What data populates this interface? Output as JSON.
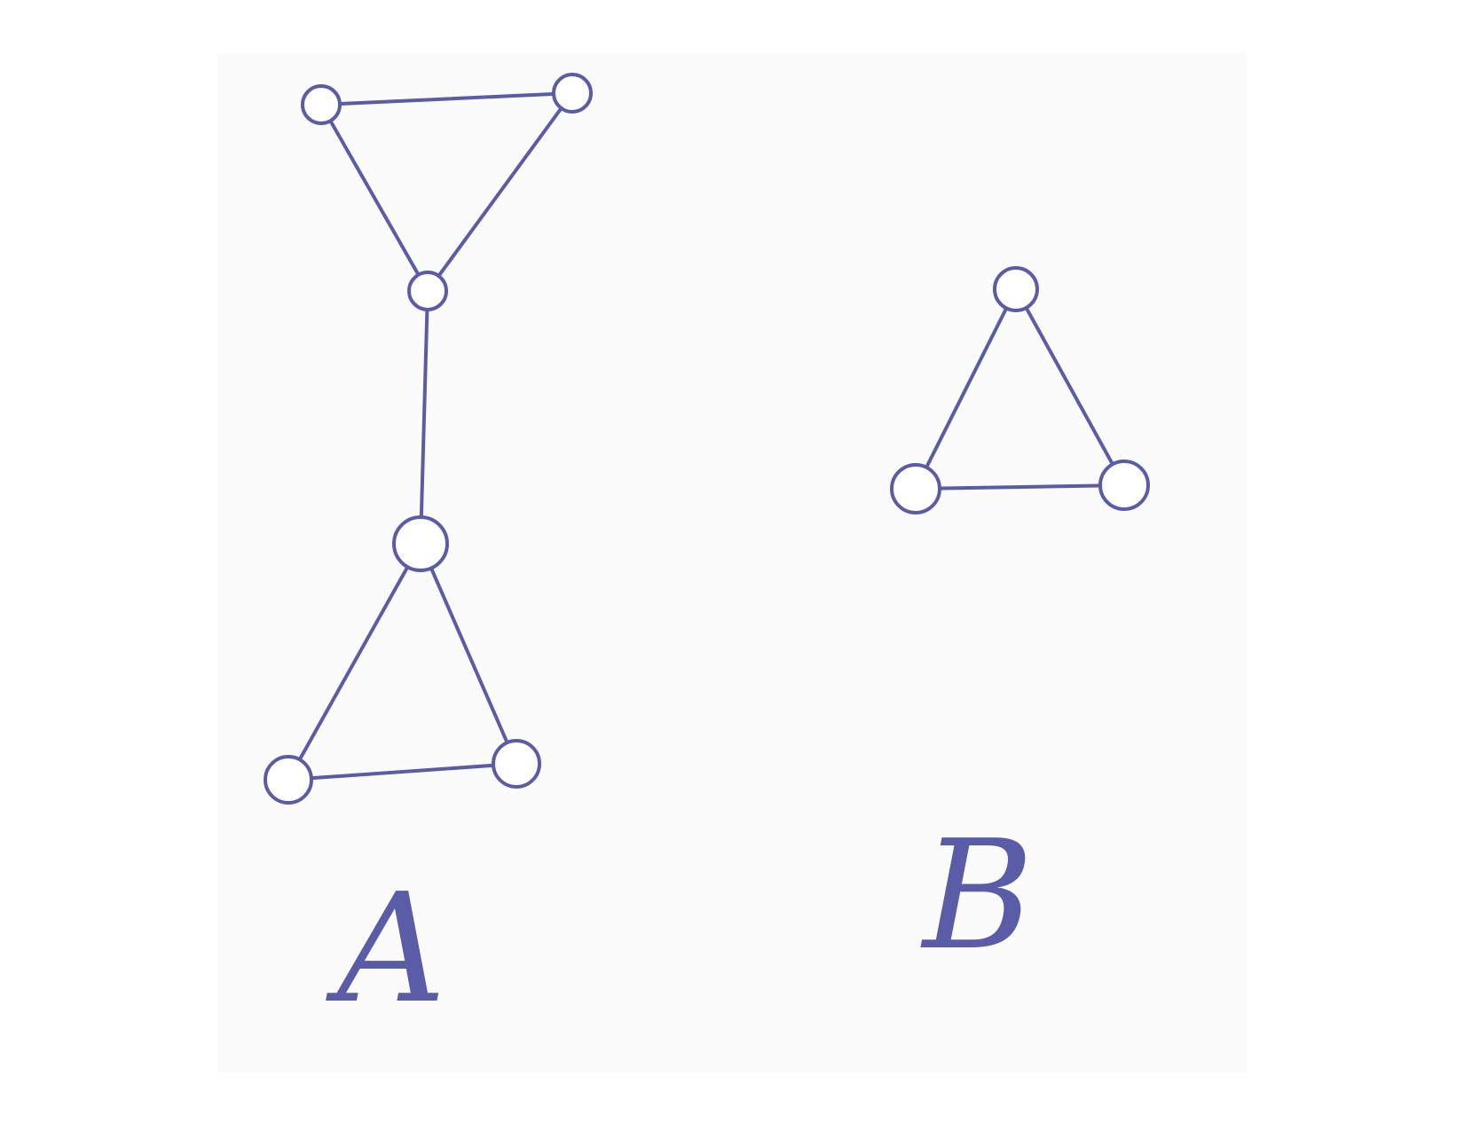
{
  "colors": {
    "ink": "#5b5ca8",
    "background": "#ffffff",
    "paper": "#fbfbfb"
  },
  "graphs": [
    {
      "id": "graph-a",
      "label": "A",
      "nodes": [
        "a1",
        "a2",
        "a3",
        "a4",
        "a5",
        "a6"
      ],
      "edges": [
        [
          "a1",
          "a2"
        ],
        [
          "a1",
          "a3"
        ],
        [
          "a2",
          "a3"
        ],
        [
          "a3",
          "a4"
        ],
        [
          "a4",
          "a5"
        ],
        [
          "a4",
          "a6"
        ],
        [
          "a5",
          "a6"
        ]
      ]
    },
    {
      "id": "graph-b",
      "label": "B",
      "nodes": [
        "b1",
        "b2",
        "b3"
      ],
      "edges": [
        [
          "b1",
          "b2"
        ],
        [
          "b1",
          "b3"
        ],
        [
          "b2",
          "b3"
        ]
      ]
    }
  ]
}
